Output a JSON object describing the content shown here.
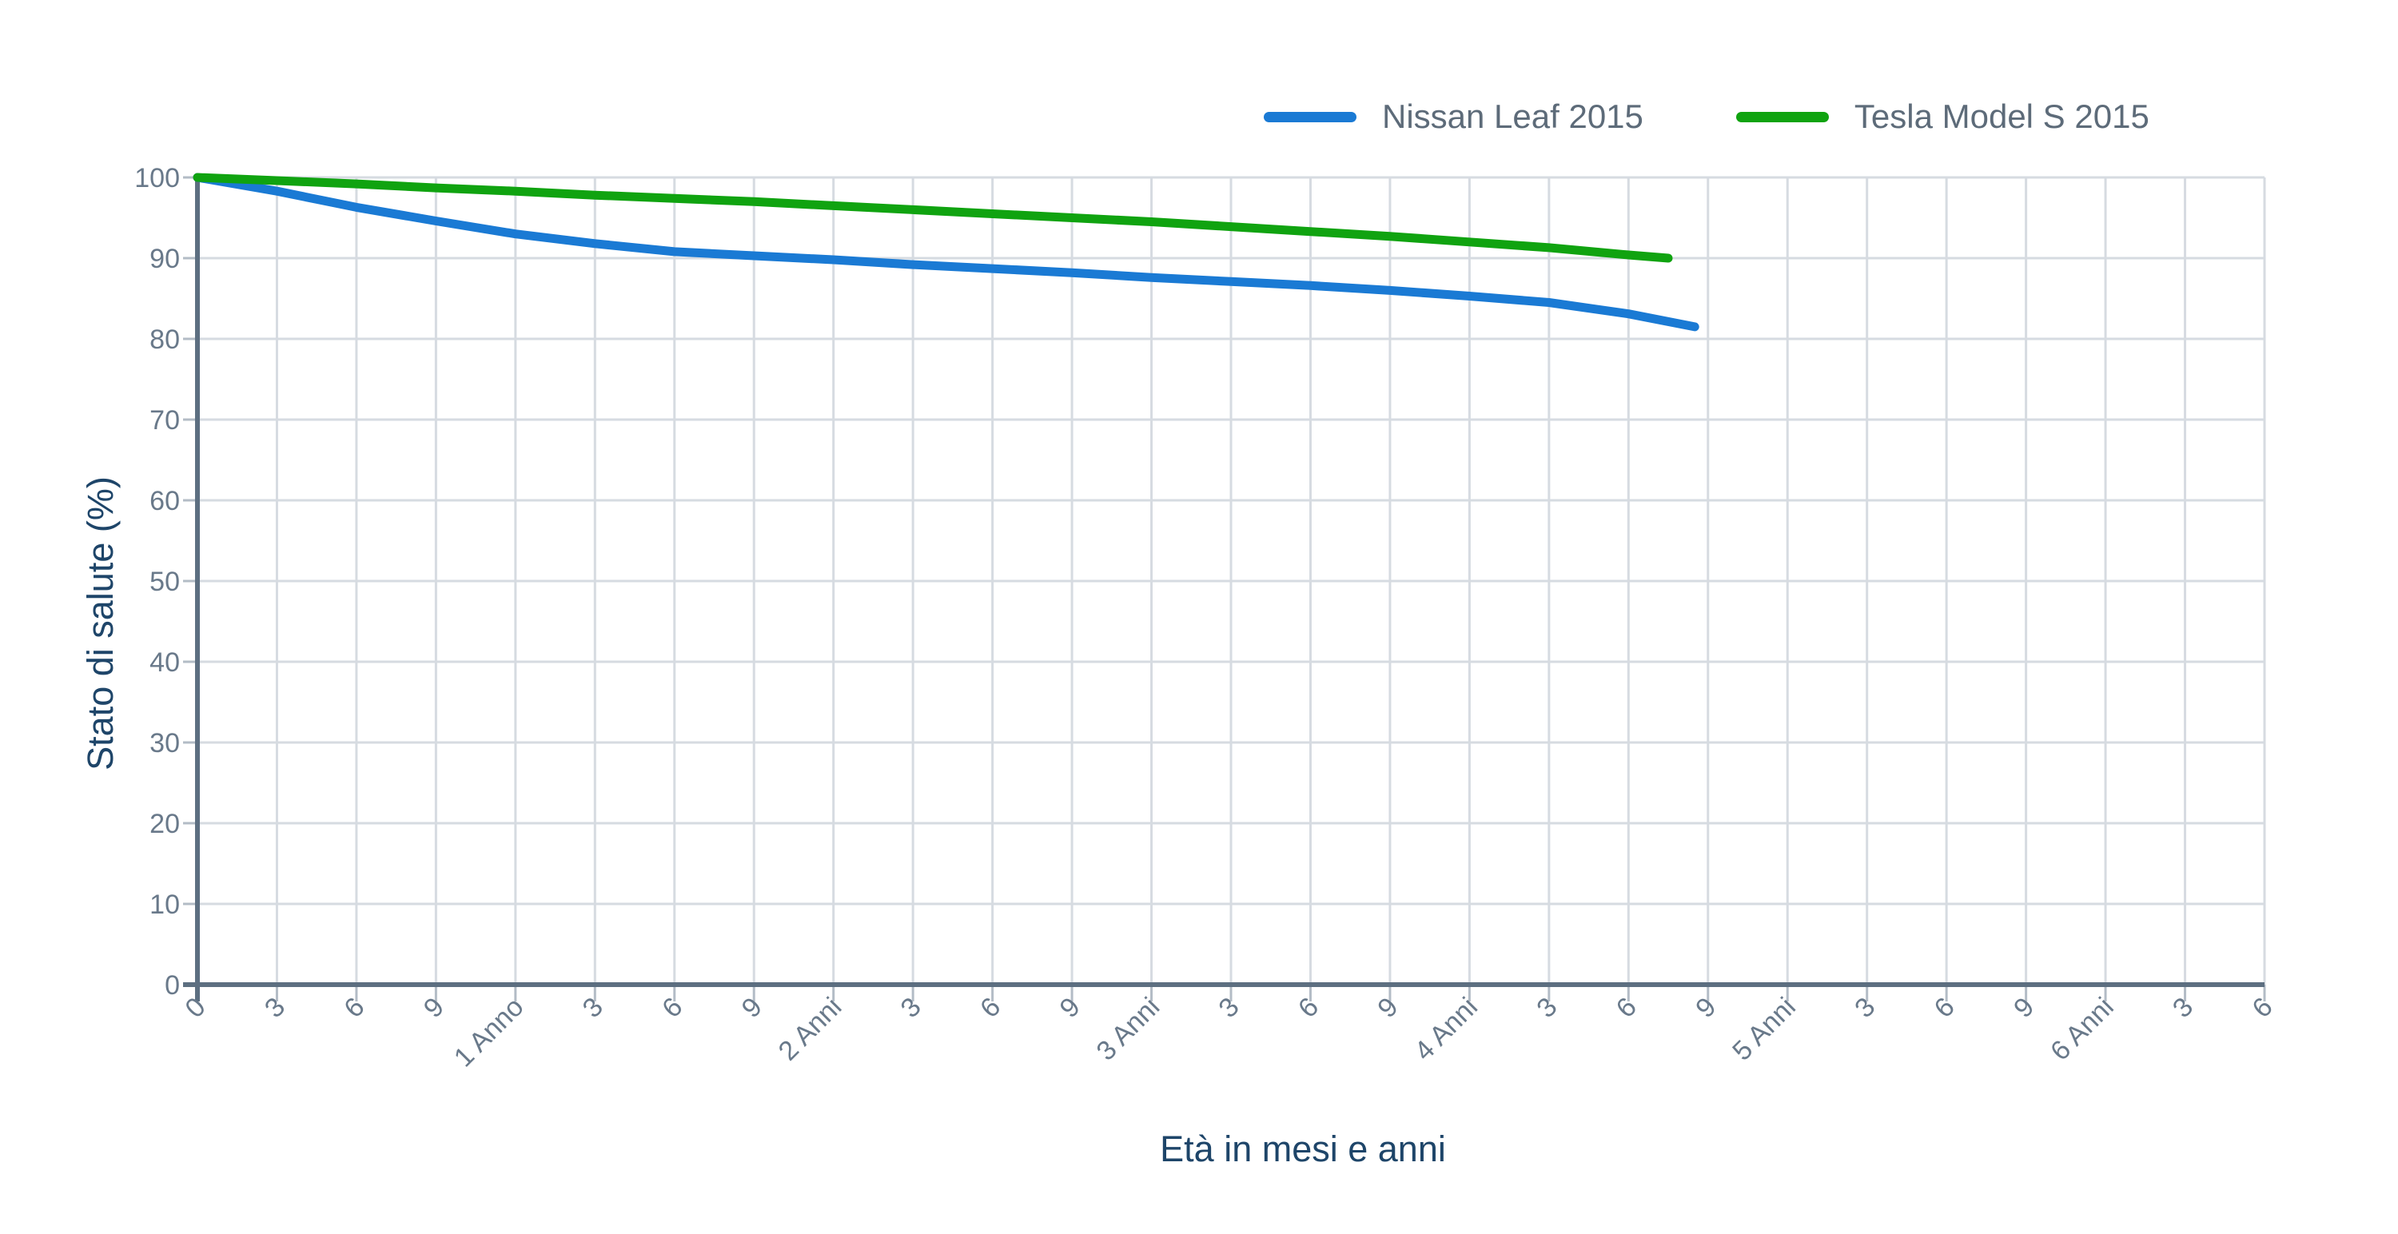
{
  "legend": {
    "items": [
      {
        "label": "Nissan Leaf 2015",
        "color": "#1A7AD4"
      },
      {
        "label": "Tesla Model S 2015",
        "color": "#10A310"
      }
    ]
  },
  "chart_data": {
    "type": "line",
    "title": "",
    "xlabel": "Età in mesi e anni",
    "ylabel": "Stato di salute (%)",
    "x_unit": "months",
    "xlim": [
      0,
      78
    ],
    "ylim": [
      0,
      100
    ],
    "grid": true,
    "legend_position": "top-right",
    "y_ticks": [
      0,
      10,
      20,
      30,
      40,
      50,
      60,
      70,
      80,
      90,
      100
    ],
    "x_tick_months": [
      0,
      3,
      6,
      9,
      12,
      15,
      18,
      21,
      24,
      27,
      30,
      33,
      36,
      39,
      42,
      45,
      48,
      51,
      54,
      57,
      60,
      63,
      66,
      69,
      72,
      75,
      78
    ],
    "x_tick_labels": [
      "0",
      "3",
      "6",
      "9",
      "1 Anno",
      "3",
      "6",
      "9",
      "2 Anni",
      "3",
      "6",
      "9",
      "3 Anni",
      "3",
      "6",
      "9",
      "4 Anni",
      "3",
      "6",
      "9",
      "5 Anni",
      "3",
      "6",
      "9",
      "6 Anni",
      "3",
      "6"
    ],
    "series": [
      {
        "name": "Nissan Leaf 2015",
        "color": "#1A7AD4",
        "points": [
          [
            0,
            100
          ],
          [
            3,
            98.3
          ],
          [
            6,
            96.3
          ],
          [
            9,
            94.6
          ],
          [
            12,
            93
          ],
          [
            15,
            91.8
          ],
          [
            18,
            90.8
          ],
          [
            21,
            90.3
          ],
          [
            24,
            89.8
          ],
          [
            27,
            89.2
          ],
          [
            30,
            88.7
          ],
          [
            33,
            88.2
          ],
          [
            36,
            87.6
          ],
          [
            39,
            87.1
          ],
          [
            42,
            86.6
          ],
          [
            45,
            86
          ],
          [
            48,
            85.3
          ],
          [
            51,
            84.5
          ],
          [
            54,
            83.1
          ],
          [
            56.5,
            81.5
          ]
        ]
      },
      {
        "name": "Tesla Model S 2015",
        "color": "#10A310",
        "points": [
          [
            0,
            100
          ],
          [
            3,
            99.6
          ],
          [
            6,
            99.2
          ],
          [
            9,
            98.7
          ],
          [
            12,
            98.3
          ],
          [
            15,
            97.8
          ],
          [
            18,
            97.4
          ],
          [
            21,
            97
          ],
          [
            24,
            96.5
          ],
          [
            27,
            96
          ],
          [
            30,
            95.5
          ],
          [
            33,
            95
          ],
          [
            36,
            94.5
          ],
          [
            39,
            93.9
          ],
          [
            42,
            93.3
          ],
          [
            45,
            92.7
          ],
          [
            48,
            92
          ],
          [
            51,
            91.3
          ],
          [
            54,
            90.4
          ],
          [
            55.5,
            90
          ]
        ]
      }
    ]
  },
  "colors": {
    "background": "#ffffff",
    "gridline": "#d6dbe1",
    "axis_line": "#5d6f81",
    "tick_stub": "#b3bcc6",
    "tick_label": "#69798a",
    "axis_title": "#1e4569",
    "legend_text": "#5d6b79"
  }
}
